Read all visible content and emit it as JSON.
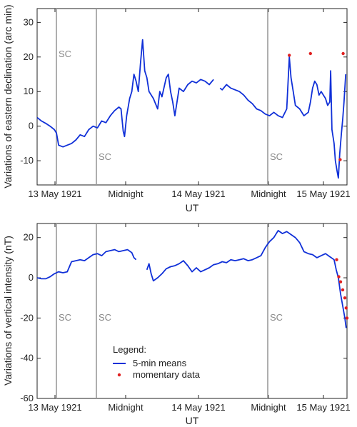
{
  "chart_data": [
    {
      "type": "line",
      "ylabel": "Variations of eastern declination (arc min)",
      "xlabel": "UT",
      "xlim": [
        0,
        72
      ],
      "ylim": [
        -17,
        34
      ],
      "yticks": [
        -10,
        0,
        10,
        20,
        30
      ],
      "xticks": [
        {
          "x": 0,
          "label": "13 May 1921"
        },
        {
          "x": 24,
          "label": "Midnight"
        },
        {
          "x": 48,
          "label": "14 May 1921"
        },
        {
          "x": 72,
          "label": "Midnight"
        },
        {
          "x": 96,
          "label": "15 May 1921"
        }
      ],
      "sc_lines": [
        {
          "x": 5.0,
          "label": "SC"
        },
        {
          "x": 20.0,
          "label": "SC"
        },
        {
          "x": 68.0,
          "label": "SC"
        }
      ],
      "colors": {
        "series": "#1030d8",
        "momentary": "#e02020",
        "sc_line": "#999999",
        "connector": "#c0c0c0"
      },
      "series": [
        {
          "name": "5-min means",
          "segments": [
            [
              [
                0,
                2.5
              ],
              [
                1,
                1.5
              ],
              [
                2,
                0.8
              ],
              [
                3,
                0
              ],
              [
                4,
                -1
              ],
              [
                4.5,
                -2
              ],
              [
                5,
                -5.5
              ],
              [
                6,
                -6
              ],
              [
                7,
                -5.5
              ],
              [
                8,
                -5
              ],
              [
                9,
                -4
              ],
              [
                10,
                -2.5
              ],
              [
                11,
                -3
              ],
              [
                12,
                -1
              ],
              [
                13,
                0
              ],
              [
                14,
                -0.5
              ],
              [
                15,
                1.5
              ],
              [
                16,
                1
              ],
              [
                17,
                3
              ],
              [
                18,
                4.5
              ],
              [
                19,
                5.5
              ],
              [
                19.5,
                5
              ],
              [
                20,
                -1.5
              ],
              [
                20.3,
                -3
              ],
              [
                20.8,
                3
              ],
              [
                21.5,
                8
              ],
              [
                22,
                10
              ],
              [
                22.5,
                15
              ],
              [
                23,
                13
              ],
              [
                23.5,
                10
              ],
              [
                24,
                18
              ],
              [
                24.5,
                25
              ],
              [
                25,
                16
              ],
              [
                25.5,
                14
              ],
              [
                26,
                10
              ],
              [
                27,
                8
              ],
              [
                28,
                5
              ],
              [
                28.5,
                10
              ],
              [
                29,
                8.5
              ],
              [
                30,
                14
              ],
              [
                30.5,
                15
              ],
              [
                31,
                10
              ],
              [
                31.5,
                7
              ],
              [
                32,
                3
              ],
              [
                32.5,
                7
              ],
              [
                33,
                11
              ],
              [
                34,
                10
              ],
              [
                35,
                12
              ],
              [
                36,
                13
              ],
              [
                37,
                12.5
              ],
              [
                38,
                13.5
              ],
              [
                39,
                13
              ],
              [
                40,
                12
              ],
              [
                41,
                13.5
              ]
            ],
            [
              [
                42.5,
                11
              ],
              [
                43,
                10.5
              ],
              [
                44,
                12
              ],
              [
                45,
                11
              ],
              [
                46,
                10.5
              ],
              [
                47,
                10
              ],
              [
                48,
                9
              ],
              [
                49,
                7.5
              ],
              [
                50,
                6.5
              ],
              [
                51,
                5
              ],
              [
                52,
                4.5
              ],
              [
                53,
                3.5
              ],
              [
                54,
                3
              ],
              [
                55,
                4
              ],
              [
                56,
                3
              ],
              [
                57,
                2.5
              ],
              [
                58,
                5
              ],
              [
                58.6,
                20
              ],
              [
                59,
                14
              ],
              [
                59.5,
                10
              ],
              [
                60,
                6
              ],
              [
                61,
                5
              ],
              [
                62,
                3
              ],
              [
                63,
                4
              ],
              [
                63.5,
                7
              ],
              [
                64,
                11
              ],
              [
                64.5,
                13
              ],
              [
                65,
                12
              ],
              [
                65.5,
                9
              ],
              [
                66,
                10
              ],
              [
                67,
                8
              ],
              [
                67.5,
                6
              ],
              [
                68,
                7
              ],
              [
                68.2,
                16
              ],
              [
                68.5,
                -1
              ],
              [
                69,
                -5
              ],
              [
                69.3,
                -10
              ],
              [
                69.7,
                -13
              ],
              [
                70,
                -15
              ],
              [
                70.3,
                -8
              ],
              [
                70.7,
                -2
              ],
              [
                71,
                2
              ],
              [
                71.3,
                7
              ],
              [
                71.7,
                15
              ]
            ]
          ]
        },
        {
          "name": "momentary data",
          "points": [
            [
              58.6,
              20.5
            ],
            [
              63.5,
              21
            ],
            [
              70.4,
              -9.7
            ],
            [
              71.1,
              21
            ]
          ]
        }
      ]
    },
    {
      "type": "line",
      "ylabel": "Variations of vertical intensity (nT)",
      "xlabel": "UT",
      "xlim": [
        0,
        72
      ],
      "ylim": [
        -60,
        27
      ],
      "yticks": [
        -60,
        -40,
        -20,
        0,
        20
      ],
      "xticks": [
        {
          "x": 0,
          "label": "13 May 1921"
        },
        {
          "x": 24,
          "label": "Midnight"
        },
        {
          "x": 48,
          "label": "14 May 1921"
        },
        {
          "x": 72,
          "label": "Midnight"
        },
        {
          "x": 96,
          "label": "15 May 1921"
        }
      ],
      "sc_lines": [
        {
          "x": 5.0,
          "label": "SC"
        },
        {
          "x": 20.0,
          "label": "SC"
        },
        {
          "x": 68.0,
          "label": "SC"
        }
      ],
      "legend": {
        "title": "Legend:",
        "placement": "bottom-left"
      },
      "series": [
        {
          "name": "5-min means",
          "segments": [
            [
              [
                0,
                0
              ],
              [
                1,
                -0.5
              ],
              [
                2,
                -0.5
              ],
              [
                3,
                0.5
              ],
              [
                4,
                2
              ],
              [
                5,
                3
              ],
              [
                6,
                2.5
              ],
              [
                7,
                3
              ],
              [
                8,
                8
              ],
              [
                9,
                8.5
              ],
              [
                10,
                9
              ],
              [
                11,
                8.5
              ],
              [
                12,
                10
              ],
              [
                13,
                11.5
              ],
              [
                14,
                12
              ],
              [
                15,
                11
              ],
              [
                16,
                13
              ],
              [
                17,
                13.5
              ],
              [
                18,
                14
              ],
              [
                19,
                13
              ],
              [
                20,
                13.5
              ],
              [
                21,
                14
              ],
              [
                22,
                12.5
              ],
              [
                22.5,
                10
              ],
              [
                23,
                9
              ]
            ],
            [
              [
                25.5,
                4
              ],
              [
                26,
                7
              ],
              [
                26.5,
                2
              ],
              [
                27,
                -1.5
              ],
              [
                28,
                0
              ],
              [
                29,
                2
              ],
              [
                30,
                4.5
              ],
              [
                31,
                5.5
              ],
              [
                32,
                6
              ],
              [
                33,
                7
              ],
              [
                34,
                8.5
              ],
              [
                35,
                6
              ],
              [
                36,
                3
              ],
              [
                37,
                5
              ],
              [
                38,
                3
              ],
              [
                39,
                4
              ],
              [
                40,
                5
              ],
              [
                41,
                6.5
              ],
              [
                42,
                7
              ],
              [
                43,
                8
              ],
              [
                44,
                7.5
              ],
              [
                45,
                9
              ],
              [
                46,
                8.5
              ],
              [
                47,
                9
              ],
              [
                48,
                9.5
              ],
              [
                49,
                8.5
              ],
              [
                50,
                9
              ],
              [
                51,
                10
              ],
              [
                52,
                11
              ],
              [
                53,
                15
              ],
              [
                54,
                18
              ],
              [
                55,
                20
              ],
              [
                56,
                23.5
              ],
              [
                57,
                22
              ],
              [
                58,
                23
              ],
              [
                59,
                21.5
              ],
              [
                60,
                20
              ],
              [
                61,
                17.5
              ],
              [
                62,
                13
              ],
              [
                63,
                12
              ],
              [
                64,
                11.5
              ],
              [
                65,
                10
              ],
              [
                66,
                11
              ],
              [
                67,
                12
              ],
              [
                68,
                10.5
              ],
              [
                69,
                9
              ],
              [
                69.5,
                4
              ],
              [
                70,
                0
              ],
              [
                70.5,
                -8
              ],
              [
                71,
                -14
              ],
              [
                71.5,
                -20
              ],
              [
                71.8,
                -25
              ]
            ]
          ]
        },
        {
          "name": "momentary data",
          "points": [
            [
              69.6,
              9
            ],
            [
              70.1,
              0.5
            ],
            [
              70.5,
              -2
            ],
            [
              71.0,
              -6
            ],
            [
              71.5,
              -10
            ],
            [
              71.8,
              -15
            ],
            [
              72.0,
              -20
            ]
          ]
        }
      ]
    }
  ]
}
